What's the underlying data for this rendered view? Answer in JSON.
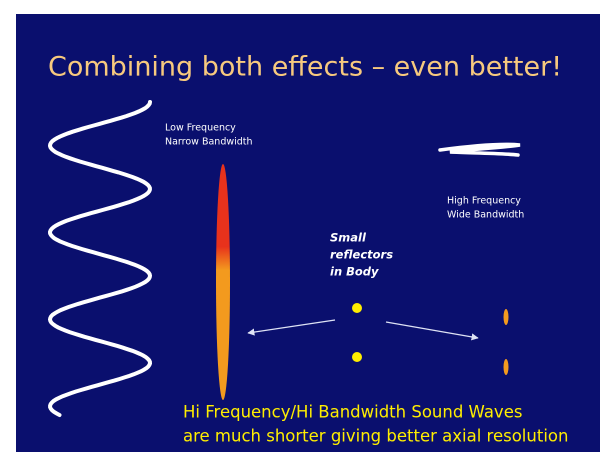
{
  "title": "Combining both effects – even better!",
  "low_frequency_label": {
    "lines": [
      "Low Frequency",
      "Narrow Bandwidth"
    ]
  },
  "high_frequency_label": {
    "lines": [
      "High Frequency",
      "Wide Bandwidth"
    ]
  },
  "reflectors_label": {
    "lines": [
      "Small",
      "reflectors",
      "in Body"
    ]
  },
  "caption": {
    "lines": [
      "Hi Frequency/Hi Bandwidth Sound Waves",
      "are much shorter giving better axial resolution"
    ]
  }
}
